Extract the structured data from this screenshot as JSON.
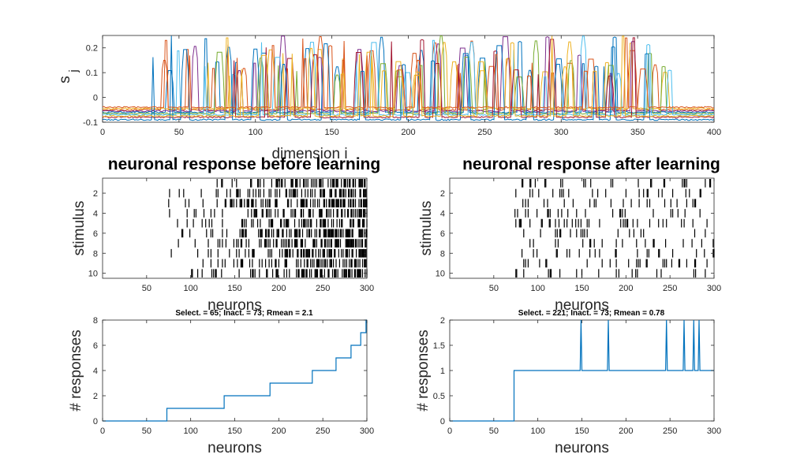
{
  "chart_data": [
    {
      "type": "line",
      "panel": "top",
      "xlabel": "dimension i",
      "ylabel": "s",
      "ylabel_subscript": "j",
      "xlim": [
        0,
        400
      ],
      "ylim": [
        -0.1,
        0.25
      ],
      "xticks": [
        "0",
        "50",
        "100",
        "150",
        "200",
        "250",
        "300",
        "350",
        "400"
      ],
      "yticks": [
        "-0.1",
        "0",
        "0.1",
        "0.2"
      ],
      "grid": false,
      "series_count": 10,
      "series_colors": [
        "#0072bd",
        "#d95319",
        "#edb120",
        "#7e2f8e",
        "#77ac30",
        "#4dbeee",
        "#a2142f",
        "#0072bd",
        "#d95319",
        "#edb120"
      ],
      "baseline_values": [
        -0.06,
        -0.05,
        -0.045,
        -0.055,
        -0.065,
        -0.07,
        -0.08,
        -0.09,
        -0.04,
        -0.075
      ],
      "peak_value_range": [
        0.08,
        0.25
      ],
      "active_dimension_range": [
        20,
        385
      ]
    },
    {
      "type": "heatmap",
      "panel": "raster-before",
      "title": "neuronal response before learning",
      "xlabel": "neurons",
      "ylabel": "stimulus",
      "xlim": [
        0,
        300
      ],
      "ylim": [
        0.5,
        10.5
      ],
      "xticks": [
        "50",
        "100",
        "150",
        "200",
        "250",
        "300"
      ],
      "yticks": [
        "2",
        "4",
        "6",
        "8",
        "10"
      ],
      "stimuli": 10,
      "neurons": 300,
      "inactive_neurons": 73
    },
    {
      "type": "heatmap",
      "panel": "raster-after",
      "title": "neuronal response after learning",
      "xlabel": "neurons",
      "ylabel": "stimulus",
      "xlim": [
        0,
        300
      ],
      "ylim": [
        0.5,
        10.5
      ],
      "xticks": [
        "50",
        "100",
        "150",
        "200",
        "250",
        "300"
      ],
      "yticks": [
        "2",
        "4",
        "6",
        "8",
        "10"
      ],
      "stimuli": 10,
      "neurons": 300,
      "inactive_neurons": 73
    },
    {
      "type": "line",
      "panel": "count-before",
      "title": "Select. = 65; Inact. = 73; Rmean = 2.1",
      "xlabel": "neurons",
      "ylabel": "# responses",
      "xlim": [
        0,
        300
      ],
      "ylim": [
        0,
        8
      ],
      "xticks": [
        "0",
        "50",
        "100",
        "150",
        "200",
        "250",
        "300"
      ],
      "yticks": [
        "0",
        "2",
        "4",
        "6",
        "8"
      ],
      "color": "#0072bd",
      "steps": [
        {
          "from": 0,
          "to": 73,
          "value": 0
        },
        {
          "from": 73,
          "to": 138,
          "value": 1
        },
        {
          "from": 138,
          "to": 190,
          "value": 2
        },
        {
          "from": 190,
          "to": 238,
          "value": 3
        },
        {
          "from": 238,
          "to": 265,
          "value": 4
        },
        {
          "from": 265,
          "to": 282,
          "value": 5
        },
        {
          "from": 282,
          "to": 293,
          "value": 6
        },
        {
          "from": 293,
          "to": 299,
          "value": 7
        },
        {
          "from": 299,
          "to": 300,
          "value": 8
        }
      ]
    },
    {
      "type": "line",
      "panel": "count-after",
      "title": "Select. = 221; Inact. = 73; Rmean = 0.78",
      "xlabel": "neurons",
      "ylabel": "# responses",
      "xlim": [
        0,
        300
      ],
      "ylim": [
        0,
        2
      ],
      "xticks": [
        "0",
        "50",
        "100",
        "150",
        "200",
        "250",
        "300"
      ],
      "yticks": [
        "0",
        "0.5",
        "1",
        "1.5",
        "2"
      ],
      "color": "#0072bd",
      "baseline_steps": [
        {
          "from": 0,
          "to": 73,
          "value": 0
        },
        {
          "from": 73,
          "to": 300,
          "value": 1
        }
      ],
      "spikes": [
        {
          "x": 149,
          "value": 2
        },
        {
          "x": 180,
          "value": 2
        },
        {
          "x": 246,
          "value": 2
        },
        {
          "x": 266,
          "value": 2
        },
        {
          "x": 277,
          "value": 2
        },
        {
          "x": 283,
          "value": 2
        }
      ]
    }
  ]
}
